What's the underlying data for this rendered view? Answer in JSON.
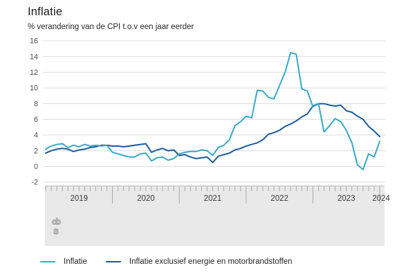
{
  "header": {
    "title": "Inflatie",
    "subtitle": "% verandering van de CPI t.o.v een jaar eerder"
  },
  "colors": {
    "series_inflatie": "#35a9c4",
    "series_core": "#1d5a99",
    "gridline": "#dcdcdc",
    "axis_text": "#4a4a4a",
    "slider_bg": "#e9e9e9",
    "slider_border": "#bdbdbd",
    "slider_tick": "#a8a8a8",
    "year_text": "#383838",
    "logo_gray": "#9e9e9e"
  },
  "footer": {
    "logo_line1": "cb",
    "logo_line2": "s"
  },
  "chart_data": {
    "type": "line",
    "title": "Inflatie",
    "subtitle": "% verandering van de CPI t.o.v een jaar eerder",
    "x_axis": {
      "unit": "month",
      "start": "2019-01",
      "end": "2024-01",
      "tick_labels": [
        "2019",
        "2020",
        "2021",
        "2022",
        "2023",
        "2024"
      ]
    },
    "ylabel": "% verandering CPI t.o.v. een jaar eerder",
    "ylim": [
      -2,
      16
    ],
    "y_ticks": [
      -2,
      0,
      2,
      4,
      6,
      8,
      10,
      12,
      14,
      16
    ],
    "grid": true,
    "legend_position": "bottom",
    "series": [
      {
        "name": "Inflatie",
        "color": "#35a9c4",
        "values": [
          2.2,
          2.6,
          2.8,
          2.9,
          2.4,
          2.7,
          2.5,
          2.8,
          2.6,
          2.7,
          2.6,
          2.7,
          1.8,
          1.6,
          1.4,
          1.2,
          1.2,
          1.6,
          1.7,
          0.7,
          1.1,
          1.2,
          0.8,
          1.0,
          1.6,
          1.8,
          1.9,
          1.9,
          2.1,
          2.0,
          1.4,
          2.4,
          2.7,
          3.4,
          5.2,
          5.7,
          6.4,
          6.2,
          9.7,
          9.6,
          8.8,
          8.6,
          10.3,
          12.0,
          14.5,
          14.3,
          9.9,
          9.6,
          7.6,
          8.0,
          4.4,
          5.2,
          6.1,
          5.7,
          4.6,
          3.0,
          0.2,
          -0.4,
          1.6,
          1.2,
          3.2
        ]
      },
      {
        "name": "Inflatie exclusief energie en motorbrandstoffen",
        "color": "#1d5a99",
        "values": [
          1.7,
          2.0,
          2.2,
          2.3,
          2.2,
          1.9,
          2.1,
          2.2,
          2.4,
          2.5,
          2.7,
          2.7,
          2.6,
          2.6,
          2.5,
          2.6,
          2.7,
          2.8,
          2.9,
          1.8,
          2.1,
          2.3,
          2.0,
          2.1,
          1.4,
          1.5,
          1.2,
          1.0,
          1.1,
          1.2,
          0.5,
          1.3,
          1.5,
          1.7,
          2.1,
          2.3,
          2.6,
          2.8,
          3.0,
          3.4,
          4.1,
          4.3,
          4.6,
          5.1,
          5.4,
          5.8,
          6.3,
          6.7,
          7.7,
          8.0,
          8.0,
          7.8,
          7.7,
          7.8,
          7.1,
          6.9,
          6.4,
          6.0,
          5.1,
          4.5,
          3.8
        ]
      }
    ]
  }
}
